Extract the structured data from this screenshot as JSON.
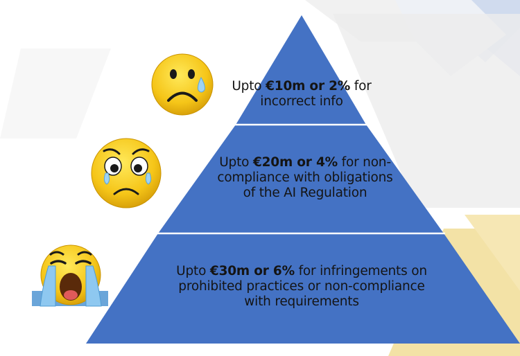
{
  "tiers": [
    {
      "line1": {
        "pre": "Upto ",
        "bold": "€10m or 2%",
        "post": " for"
      },
      "line2": "incorrect info",
      "face": "sad-face-with-tear"
    },
    {
      "line1": {
        "pre": "Upto ",
        "bold": "€20m or 4%",
        "post": " for non-"
      },
      "line2": "compliance with obligations",
      "line3": "of the AI Regulation",
      "face": "worried-crying-face"
    },
    {
      "line1": {
        "pre": "Upto ",
        "bold": "€30m or 6%",
        "post": " for infringements on"
      },
      "line2": "prohibited practices or non-compliance",
      "line3": "with requirements",
      "face": "sobbing-face"
    }
  ],
  "colors": {
    "pyramid": "#4472c4",
    "divider": "#ffffff",
    "emoji_yellow": "#f5cc1c",
    "deco_blue": "#d6dff0",
    "deco_gray": "#e6e6e6",
    "deco_yellow": "#f3dd9a"
  }
}
